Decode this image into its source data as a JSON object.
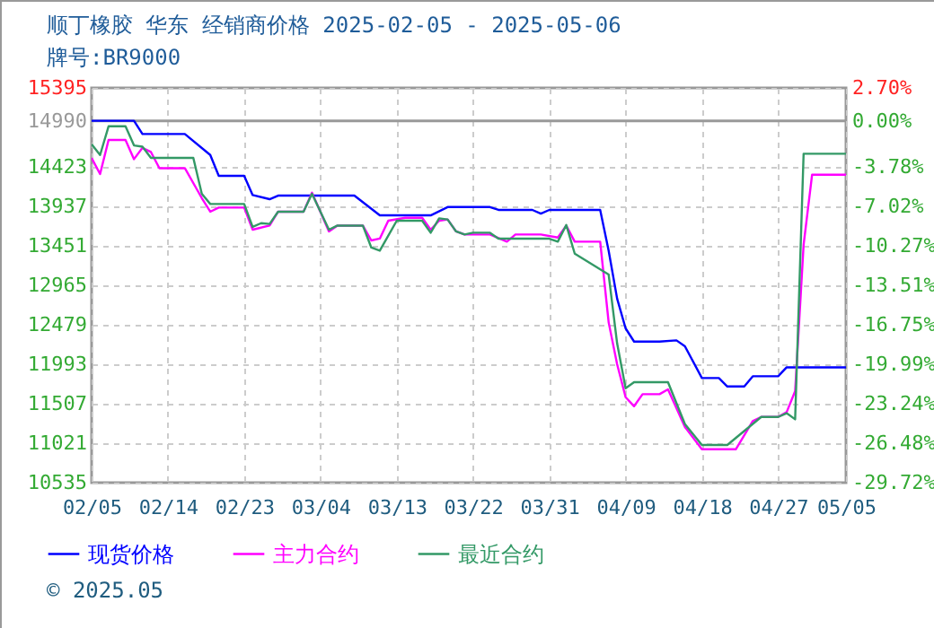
{
  "chart_data": {
    "type": "line",
    "title": "顺丁橡胶 华东 经销商价格 2025-02-05 - 2025-05-06",
    "subtitle": "牌号:BR9000",
    "annotations": [
      "© 2025.05"
    ],
    "xlim": [
      "2025-02-05",
      "2025-05-05"
    ],
    "xticks": [
      {
        "value": "2025-02-05",
        "label": "02/05"
      },
      {
        "value": "2025-02-14",
        "label": "02/14"
      },
      {
        "value": "2025-02-23",
        "label": "02/23"
      },
      {
        "value": "2025-03-04",
        "label": "03/04"
      },
      {
        "value": "2025-03-13",
        "label": "03/13"
      },
      {
        "value": "2025-03-22",
        "label": "03/22"
      },
      {
        "value": "2025-03-31",
        "label": "03/31"
      },
      {
        "value": "2025-04-09",
        "label": "04/09"
      },
      {
        "value": "2025-04-18",
        "label": "04/18"
      },
      {
        "value": "2025-04-27",
        "label": "04/27"
      },
      {
        "value": "2025-05-05",
        "label": "05/05"
      }
    ],
    "ylim": [
      10535,
      15395
    ],
    "yticks": [
      10535,
      11021,
      11507,
      11993,
      12479,
      12965,
      13451,
      13937,
      14423,
      14990,
      15395
    ],
    "y2lim": [
      -29.72,
      2.7
    ],
    "y2ticks": [
      {
        "value": -29.72,
        "label": "-29.72%"
      },
      {
        "value": -26.48,
        "label": "-26.48%"
      },
      {
        "value": -23.24,
        "label": "-23.24%"
      },
      {
        "value": -19.99,
        "label": "-19.99%"
      },
      {
        "value": -16.75,
        "label": "-16.75%"
      },
      {
        "value": -13.51,
        "label": "-13.51%"
      },
      {
        "value": -10.27,
        "label": "-10.27%"
      },
      {
        "value": -7.02,
        "label": "-7.02%"
      },
      {
        "value": -3.78,
        "label": "-3.78%"
      },
      {
        "value": 0,
        "label": "0.00%"
      },
      {
        "value": 2.7,
        "label": "2.70%"
      }
    ],
    "ref_lines": [
      {
        "axis": "y",
        "value": 14990,
        "color": "#999999"
      }
    ],
    "grid": true,
    "legend": "bottom",
    "line_style": "solid",
    "marker": "none",
    "series": [
      {
        "name": "现货价格",
        "color": "#0000ff",
        "x": [
          "2025-02-05",
          "2025-02-10",
          "2025-02-11",
          "2025-02-16",
          "2025-02-19",
          "2025-02-20",
          "2025-02-23",
          "2025-02-24",
          "2025-02-26",
          "2025-02-27",
          "2025-03-08",
          "2025-03-11",
          "2025-03-17",
          "2025-03-19",
          "2025-03-24",
          "2025-03-25",
          "2025-03-29",
          "2025-03-30",
          "2025-03-31",
          "2025-04-06",
          "2025-04-07",
          "2025-04-08",
          "2025-04-09",
          "2025-04-10",
          "2025-04-13",
          "2025-04-15",
          "2025-04-16",
          "2025-04-18",
          "2025-04-20",
          "2025-04-21",
          "2025-04-23",
          "2025-04-24",
          "2025-04-27",
          "2025-04-28",
          "2025-05-05"
        ],
        "values": [
          14990,
          14990,
          14827,
          14827,
          14569,
          14312,
          14312,
          14076,
          14025,
          14069,
          14069,
          13826,
          13826,
          13928,
          13928,
          13893,
          13893,
          13848,
          13893,
          13893,
          13391,
          12801,
          12435,
          12272,
          12272,
          12287,
          12214,
          11823,
          11823,
          11719,
          11719,
          11845,
          11845,
          11955,
          11955
        ]
      },
      {
        "name": "主力合约",
        "color": "#ff00ff",
        "x": [
          "2025-02-05",
          "2025-02-06",
          "2025-02-07",
          "2025-02-09",
          "2025-02-10",
          "2025-02-11",
          "2025-02-12",
          "2025-02-13",
          "2025-02-16",
          "2025-02-18",
          "2025-02-19",
          "2025-02-20",
          "2025-02-23",
          "2025-02-24",
          "2025-02-26",
          "2025-02-27",
          "2025-03-02",
          "2025-03-03",
          "2025-03-05",
          "2025-03-06",
          "2025-03-09",
          "2025-03-10",
          "2025-03-11",
          "2025-03-12",
          "2025-03-14",
          "2025-03-16",
          "2025-03-17",
          "2025-03-18",
          "2025-03-19",
          "2025-03-20",
          "2025-03-21",
          "2025-03-24",
          "2025-03-26",
          "2025-03-27",
          "2025-03-30",
          "2025-04-01",
          "2025-04-02",
          "2025-04-03",
          "2025-04-06",
          "2025-04-07",
          "2025-04-08",
          "2025-04-09",
          "2025-04-10",
          "2025-04-11",
          "2025-04-13",
          "2025-04-14",
          "2025-04-16",
          "2025-04-18",
          "2025-04-22",
          "2025-04-24",
          "2025-04-25",
          "2025-04-27",
          "2025-04-28",
          "2025-04-29",
          "2025-04-30",
          "2025-05-01",
          "2025-05-05"
        ],
        "values": [
          14533,
          14334,
          14754,
          14754,
          14518,
          14657,
          14606,
          14407,
          14407,
          14039,
          13871,
          13922,
          13922,
          13650,
          13700,
          13871,
          13871,
          14105,
          13628,
          13700,
          13700,
          13517,
          13540,
          13760,
          13796,
          13796,
          13650,
          13760,
          13775,
          13628,
          13590,
          13590,
          13502,
          13590,
          13590,
          13553,
          13700,
          13502,
          13502,
          12508,
          11993,
          11587,
          11476,
          11624,
          11624,
          11684,
          11220,
          10946,
          10946,
          11293,
          11344,
          11344,
          11403,
          11661,
          13464,
          14326,
          14326
        ]
      },
      {
        "name": "最近合约",
        "color": "#339966",
        "x": [
          "2025-02-05",
          "2025-02-06",
          "2025-02-07",
          "2025-02-09",
          "2025-02-10",
          "2025-02-11",
          "2025-02-12",
          "2025-02-17",
          "2025-02-18",
          "2025-02-19",
          "2025-02-23",
          "2025-02-24",
          "2025-02-25",
          "2025-02-26",
          "2025-02-27",
          "2025-03-02",
          "2025-03-03",
          "2025-03-05",
          "2025-03-06",
          "2025-03-09",
          "2025-03-10",
          "2025-03-11",
          "2025-03-13",
          "2025-03-16",
          "2025-03-17",
          "2025-03-18",
          "2025-03-19",
          "2025-03-20",
          "2025-03-21",
          "2025-03-22",
          "2025-03-24",
          "2025-03-25",
          "2025-03-31",
          "2025-04-01",
          "2025-04-02",
          "2025-04-03",
          "2025-04-07",
          "2025-04-08",
          "2025-04-09",
          "2025-04-10",
          "2025-04-14",
          "2025-04-16",
          "2025-04-18",
          "2025-04-21",
          "2025-04-25",
          "2025-04-27",
          "2025-04-28",
          "2025-04-29",
          "2025-04-30",
          "2025-05-05"
        ],
        "values": [
          14701,
          14569,
          14922,
          14922,
          14687,
          14672,
          14533,
          14533,
          14091,
          13966,
          13966,
          13685,
          13730,
          13720,
          13871,
          13871,
          14091,
          13650,
          13700,
          13700,
          13429,
          13391,
          13760,
          13760,
          13612,
          13789,
          13775,
          13628,
          13590,
          13612,
          13612,
          13539,
          13539,
          13502,
          13707,
          13354,
          13097,
          12249,
          11697,
          11772,
          11772,
          11255,
          10999,
          10999,
          11344,
          11344,
          11390,
          11315,
          14584,
          14584
        ]
      }
    ]
  }
}
